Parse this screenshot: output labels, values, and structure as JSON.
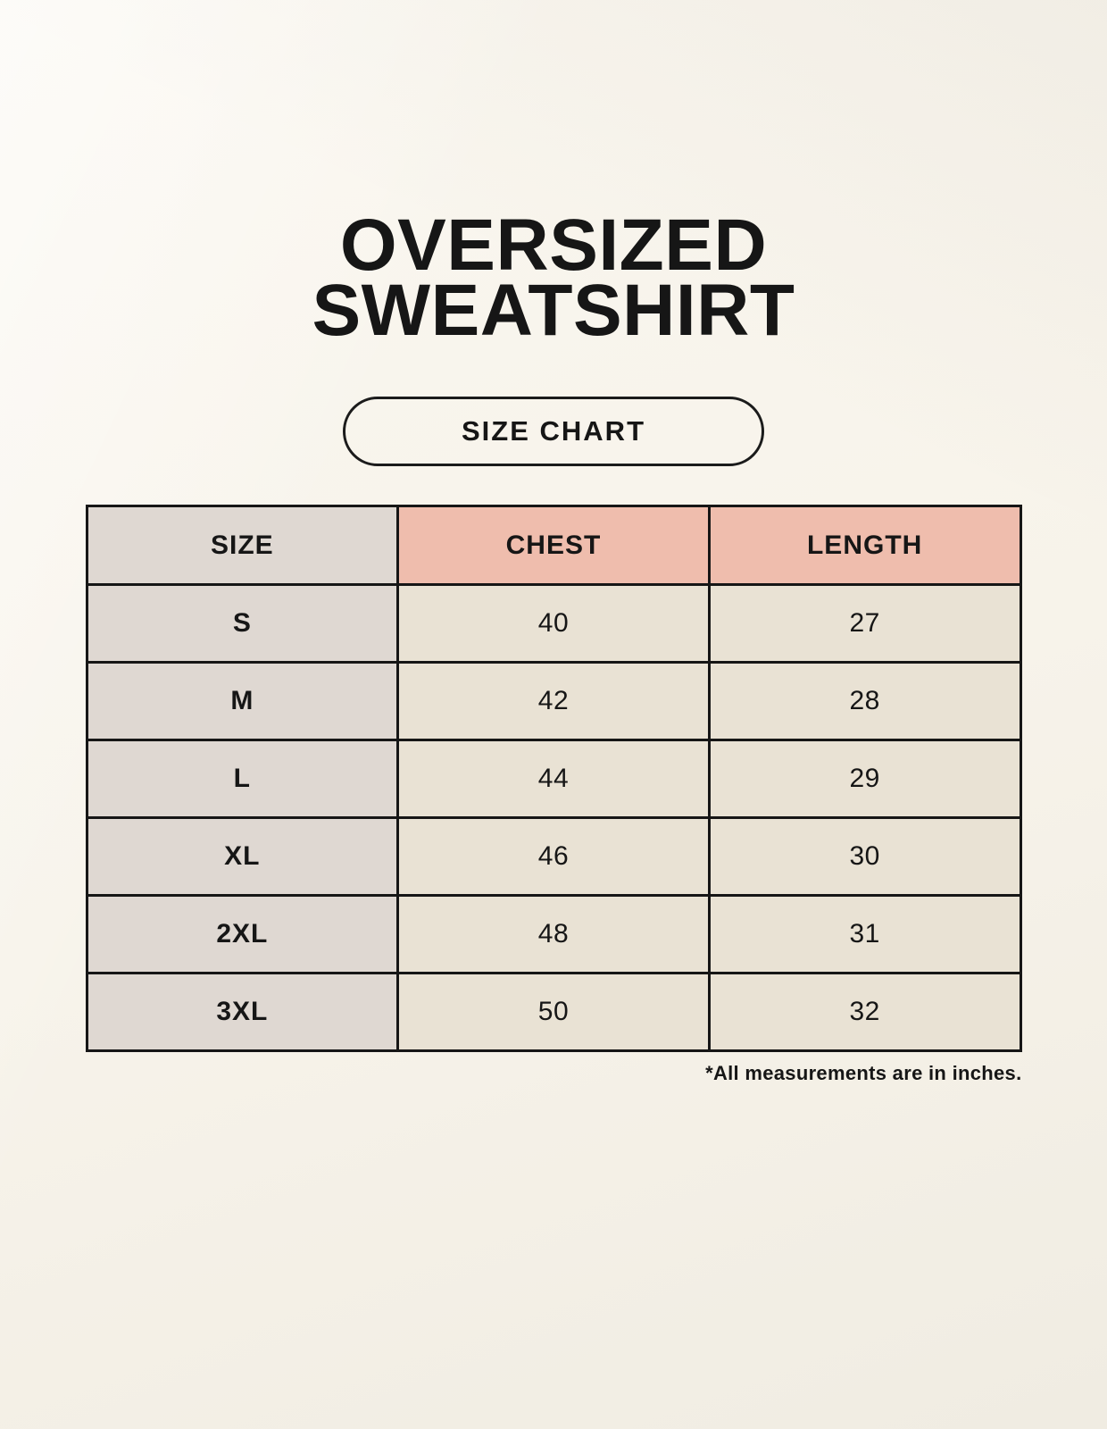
{
  "page": {
    "title": {
      "line1": "OVERSIZED",
      "line2": "SWEATSHIRT"
    },
    "badge_label": "SIZE CHART",
    "footnote": "*All measurements are in inches."
  },
  "chart_data": {
    "type": "table",
    "title": "OVERSIZED SWEATSHIRT SIZE CHART",
    "columns": [
      "SIZE",
      "CHEST",
      "LENGTH"
    ],
    "rows": [
      {
        "size": "S",
        "chest": "40",
        "length": "27"
      },
      {
        "size": "M",
        "chest": "42",
        "length": "28"
      },
      {
        "size": "L",
        "chest": "44",
        "length": "29"
      },
      {
        "size": "XL",
        "chest": "46",
        "length": "30"
      },
      {
        "size": "2XL",
        "chest": "48",
        "length": "31"
      },
      {
        "size": "3XL",
        "chest": "50",
        "length": "32"
      }
    ]
  },
  "colors": {
    "background": "#F7F3EA",
    "size_column_bg": "#DFD8D2",
    "measure_header_bg": "#EFBDAD",
    "data_cell_bg": "#E9E2D4",
    "table_border": "#161616",
    "text": "#161616"
  }
}
